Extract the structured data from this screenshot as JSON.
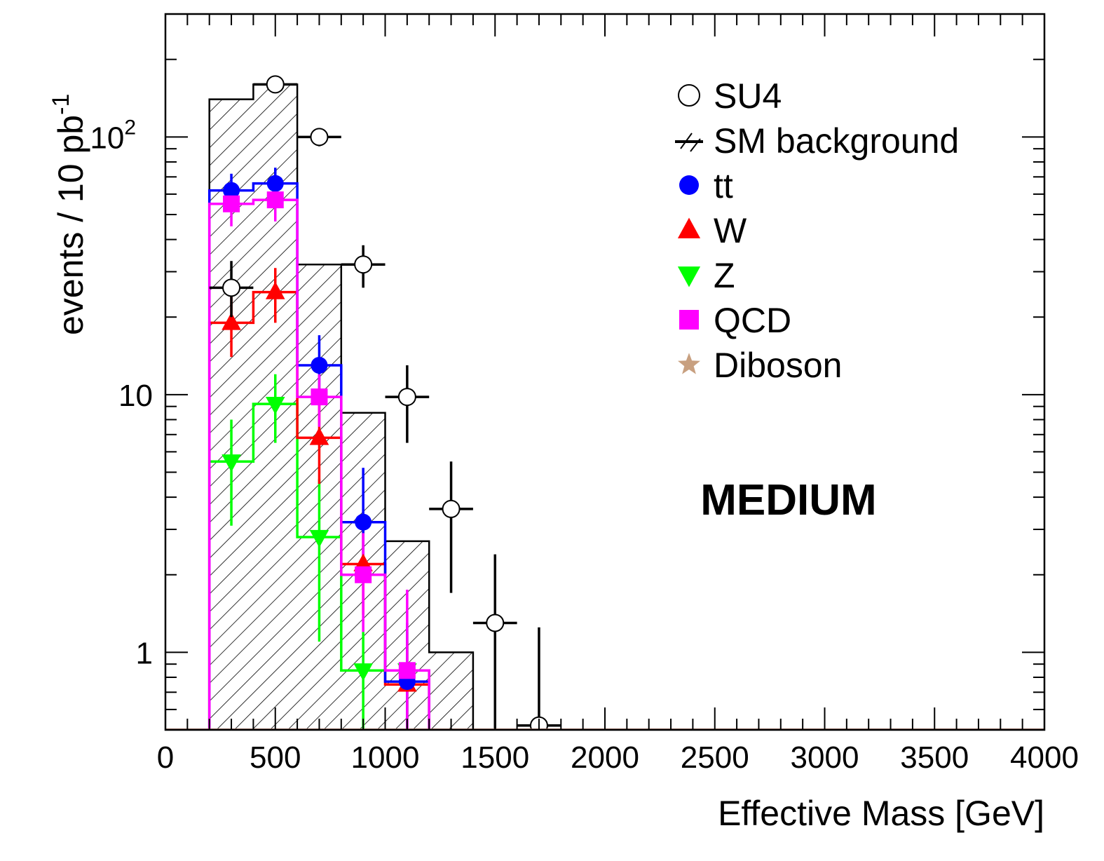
{
  "chart_data": {
    "type": "histogram",
    "xlabel": "Effective Mass [GeV]",
    "ylabel": {
      "main": "events / 10 pb",
      "sup": "-1"
    },
    "xlim": [
      0,
      4000
    ],
    "ylim": [
      0.5,
      300
    ],
    "yscale": "log",
    "x_ticks": [
      "0",
      "500",
      "1000",
      "1500",
      "2000",
      "2500",
      "3000",
      "3500",
      "4000"
    ],
    "x_tick_values": [
      0,
      500,
      1000,
      1500,
      2000,
      2500,
      3000,
      3500,
      4000
    ],
    "y_ticks": [
      {
        "value": 1,
        "base": "1",
        "sup": ""
      },
      {
        "value": 10,
        "base": "10",
        "sup": ""
      },
      {
        "value": 100,
        "base": "10",
        "sup": "2"
      }
    ],
    "region_label": "MEDIUM",
    "bin_edges": [
      200,
      400,
      600,
      800,
      1000,
      1200,
      1400,
      1600,
      1800
    ],
    "series": [
      {
        "name": "SM background",
        "kind": "hatched-hist",
        "color": "#000000",
        "values": [
          140,
          160,
          32,
          8.5,
          2.7,
          1.0,
          0.4,
          0.4
        ]
      },
      {
        "name": "tt",
        "kind": "hist-markers",
        "marker": "circle",
        "color": "#0000ff",
        "values": [
          62,
          66,
          13,
          3.2,
          0.77,
          0.4,
          0.4,
          0.4
        ],
        "err_lo": [
          52,
          56,
          9.5,
          2.0,
          0.4,
          null,
          null,
          null
        ],
        "err_hi": [
          72,
          76,
          17,
          5.2,
          1.3,
          null,
          null,
          null
        ]
      },
      {
        "name": "W",
        "kind": "hist-markers",
        "marker": "triangle-up",
        "color": "#ff0000",
        "values": [
          19,
          25,
          6.8,
          2.2,
          0.75,
          0.4,
          0.4,
          0.4
        ],
        "err_lo": [
          14,
          19,
          4.5,
          1.4,
          0.4,
          null,
          null,
          null
        ],
        "err_hi": [
          25,
          31,
          9.3,
          3.1,
          1.1,
          null,
          null,
          null
        ]
      },
      {
        "name": "Z",
        "kind": "hist-markers",
        "marker": "triangle-down",
        "color": "#00ff00",
        "values": [
          5.5,
          9.2,
          2.8,
          0.85,
          0.85,
          0.4,
          0.4,
          0.4
        ],
        "err_lo": [
          3.1,
          6.5,
          1.1,
          0.4,
          0.4,
          null,
          null,
          null
        ],
        "err_hi": [
          8.0,
          12,
          4.7,
          1.2,
          1.2,
          null,
          null,
          null
        ]
      },
      {
        "name": "QCD",
        "kind": "hist-markers",
        "marker": "square",
        "color": "#ff00ff",
        "values": [
          55,
          57,
          9.8,
          2.0,
          0.85,
          0.4,
          0.4,
          0.4
        ],
        "err_lo": [
          45,
          47,
          7.5,
          1.2,
          0.4,
          null,
          null,
          null
        ],
        "err_hi": [
          65,
          67,
          12,
          2.9,
          1.75,
          null,
          null,
          null
        ]
      },
      {
        "name": "Diboson",
        "kind": "hist-markers",
        "marker": "star",
        "color": "#c8a080",
        "values": [],
        "err_lo": [],
        "err_hi": []
      },
      {
        "name": "SU4",
        "kind": "points",
        "marker": "open-circle",
        "color": "#000000",
        "x": [
          300,
          500,
          700,
          900,
          1100,
          1300,
          1500,
          1700
        ],
        "y": [
          26,
          160,
          100,
          32,
          9.8,
          3.6,
          1.3,
          0.52
        ],
        "y_lo": [
          20,
          150,
          92,
          26,
          6.5,
          1.7,
          0.4,
          0.4
        ],
        "y_hi": [
          33,
          170,
          108,
          38,
          13,
          5.5,
          2.4,
          1.25
        ]
      }
    ],
    "legend_order": [
      "SU4",
      "SM background",
      "tt",
      "W",
      "Z",
      "QCD",
      "Diboson"
    ],
    "legend_position": "top-right"
  }
}
